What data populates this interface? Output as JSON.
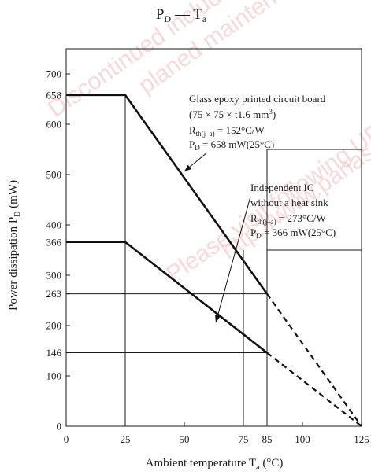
{
  "chart_data": {
    "type": "line",
    "title": {
      "main": "P",
      "main_sub": "D",
      "dash": " — T",
      "dash_sub": "a"
    },
    "xlabel": {
      "main": "Ambient temperature T",
      "sub": "a",
      "unit": " (°C)"
    },
    "ylabel": {
      "main": "Power dissipation P",
      "sub": "D",
      "unit": " (mW)"
    },
    "xlim": [
      0,
      125
    ],
    "ylim": [
      0,
      750
    ],
    "x_ticks": [
      0,
      25,
      50,
      75,
      85,
      100,
      125
    ],
    "y_ticks": [
      0,
      100,
      146,
      200,
      263,
      300,
      366,
      400,
      500,
      600,
      658,
      700
    ],
    "grid": false,
    "series": [
      {
        "points": [
          [
            0,
            658
          ],
          [
            25,
            658
          ],
          [
            85,
            263
          ]
        ],
        "dashed_points": [
          [
            85,
            263
          ],
          [
            125,
            0
          ]
        ],
        "annotation": {
          "line1": "Glass epoxy printed circuit board",
          "line2": "(75 × 75 × t1.6 mm",
          "line2_sup": "3",
          "line2_end": ")",
          "line3_a": "R",
          "line3_sub": "th(j–a)",
          "line3_b": " = 152°C/W",
          "line4_a": "P",
          "line4_sub": "D",
          "line4_b": " = 658 mW(25°C)"
        }
      },
      {
        "points": [
          [
            0,
            366
          ],
          [
            25,
            366
          ],
          [
            85,
            146
          ]
        ],
        "dashed_points": [
          [
            85,
            146
          ],
          [
            125,
            0
          ]
        ],
        "annotation": {
          "line1": "Independent IC",
          "line2": "without a heat sink",
          "line3_a": "R",
          "line3_sub": "th(j–a)",
          "line3_b": " = 273°C/W",
          "line4_a": "P",
          "line4_sub": "D",
          "line4_b": " = 366 mW(25°C)"
        }
      }
    ],
    "watermark": {
      "line1": "Discontinued included",
      "line2": "planed maintenance type",
      "line3": "Please visit following URL",
      "line4": "http://www.panasonic.com",
      "color": "#f2b9b9"
    }
  }
}
